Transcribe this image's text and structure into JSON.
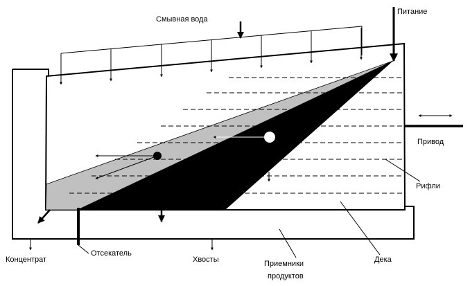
{
  "labels": {
    "wash_water": "Смывная вода",
    "feed": "Питание",
    "drive": "Привод",
    "riffles": "Рифли",
    "concentrate": "Концентрат",
    "splitter": "Отсекатель",
    "tailings": "Хвосты",
    "receivers_line1": "Приемники",
    "receivers_line2": "продуктов",
    "deck": "Дека"
  },
  "colors": {
    "stroke": "#000000",
    "light_fan": "#c0c0c0",
    "dark_fan": "#000000",
    "background": "#ffffff"
  }
}
